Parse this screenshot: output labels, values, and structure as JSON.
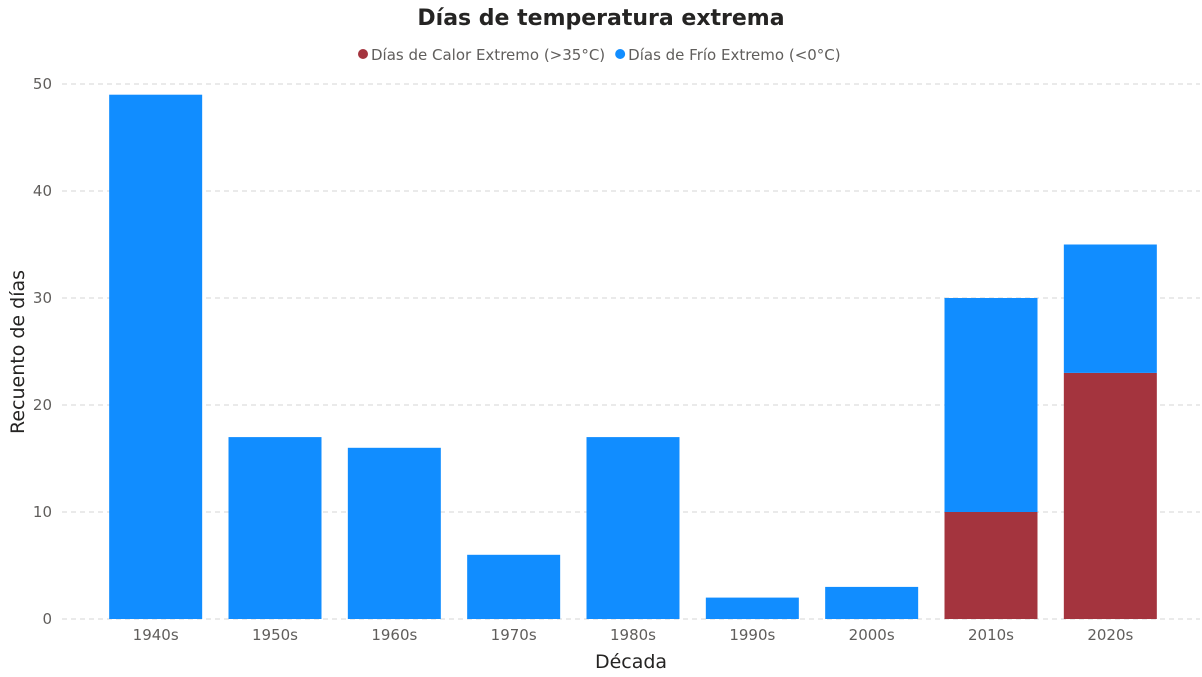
{
  "chart_data": {
    "type": "bar",
    "stacked": true,
    "title": "Días de temperatura extrema",
    "xlabel": "Década",
    "ylabel": "Recuento de días",
    "categories": [
      "1940s",
      "1950s",
      "1960s",
      "1970s",
      "1980s",
      "1990s",
      "2000s",
      "2010s",
      "2020s"
    ],
    "series": [
      {
        "name": "Días de Calor Extremo (>35°C)",
        "color": "#a4343e",
        "values": [
          0,
          0,
          0,
          0,
          0,
          0,
          0,
          10,
          23
        ]
      },
      {
        "name": "Días de Frío Extremo (<0°C)",
        "color": "#118dff",
        "values": [
          49,
          17,
          16,
          6,
          17,
          2,
          3,
          20,
          12
        ]
      }
    ],
    "ylim": [
      0,
      50
    ],
    "yticks": [
      0,
      10,
      20,
      30,
      40,
      50
    ],
    "grid": true,
    "legend_position": "top-center"
  }
}
